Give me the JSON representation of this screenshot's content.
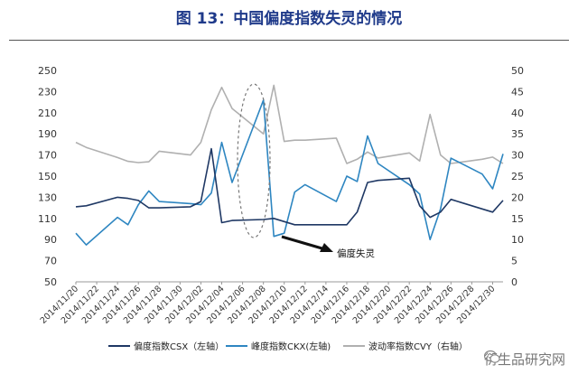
{
  "figure_title": "图 13：中国偏度指数失灵的情况",
  "watermark": "衍生品研究网",
  "chart_data": {
    "type": "line",
    "title": "图 13：中国偏度指数失灵的情况",
    "x": [
      "2014/11/20",
      "2014/11/21",
      "2014/11/24",
      "2014/11/25",
      "2014/11/26",
      "2014/11/27",
      "2014/11/28",
      "2014/12/01",
      "2014/12/02",
      "2014/12/03",
      "2014/12/04",
      "2014/12/05",
      "2014/12/08",
      "2014/12/09",
      "2014/12/10",
      "2014/12/11",
      "2014/12/12",
      "2014/12/15",
      "2014/12/16",
      "2014/12/17",
      "2014/12/18",
      "2014/12/19",
      "2014/12/22",
      "2014/12/23",
      "2014/12/24",
      "2014/12/25",
      "2014/12/26",
      "2014/12/29",
      "2014/12/30",
      "2014/12/31"
    ],
    "x_tick_labels": [
      "2014/11/20",
      "2014/11/22",
      "2014/11/24",
      "2014/11/26",
      "2014/11/28",
      "2014/11/30",
      "2014/12/02",
      "2014/12/04",
      "2014/12/06",
      "2014/12/08",
      "2014/12/10",
      "2014/12/12",
      "2014/12/14",
      "2014/12/16",
      "2014/12/18",
      "2014/12/20",
      "2014/12/22",
      "2014/12/24",
      "2014/12/26",
      "2014/12/28",
      "2014/12/30"
    ],
    "y_left": {
      "min": 50,
      "max": 250,
      "ticks": [
        50,
        70,
        90,
        110,
        130,
        150,
        170,
        190,
        210,
        230,
        250
      ]
    },
    "y_right": {
      "min": 0,
      "max": 50,
      "ticks": [
        0,
        5,
        10,
        15,
        20,
        25,
        30,
        35,
        40,
        45,
        50
      ]
    },
    "series": [
      {
        "name": "偏度指数CSX（左轴）",
        "axis": "left",
        "color": "#1f3864",
        "values": [
          121,
          122,
          130,
          129,
          127,
          120,
          120,
          121,
          126,
          176,
          106,
          108,
          109,
          110,
          107,
          104,
          104,
          104,
          104,
          116,
          144,
          146,
          148,
          122,
          111,
          116,
          128,
          119,
          116,
          127
        ]
      },
      {
        "name": "峰度指数CKX(左轴)",
        "axis": "left",
        "color": "#2e86c1",
        "values": [
          96,
          85,
          111,
          104,
          123,
          136,
          126,
          124,
          123,
          134,
          182,
          144,
          222,
          93,
          96,
          135,
          142,
          126,
          150,
          145,
          188,
          162,
          142,
          133,
          90,
          119,
          167,
          152,
          138,
          171
        ]
      },
      {
        "name": "波动率指数CVY（右轴）",
        "axis": "right",
        "color": "#b0b0b0",
        "values": [
          33,
          31.8,
          29.4,
          28.5,
          28.2,
          28.4,
          30.9,
          30,
          33,
          40.7,
          46,
          41,
          35,
          46.5,
          33.2,
          33.5,
          33.5,
          34,
          28,
          29,
          30.7,
          29.3,
          30.5,
          28.6,
          39.6,
          30,
          28,
          29,
          29.5,
          28
        ]
      }
    ],
    "annotations": [
      {
        "text": "偏度失灵"
      }
    ],
    "grid": false,
    "legend": "bottom"
  }
}
